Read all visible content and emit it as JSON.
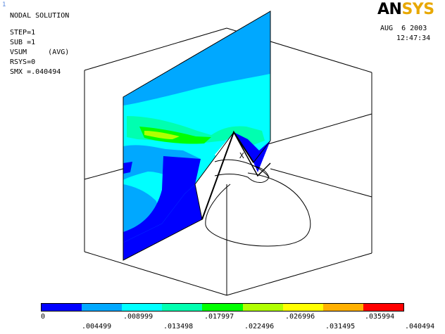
{
  "window_number": "1",
  "logo": {
    "prefix": "AN",
    "suffix": "SYS"
  },
  "info": {
    "title": "NODAL SOLUTION",
    "lines": [
      "STEP=1",
      "SUB =1",
      "VSUM     (AVG)",
      "RSYS=0",
      "SMX =.040494"
    ]
  },
  "datetime": {
    "date": "AUG  6 2003",
    "time": "12:47:34"
  },
  "legend": {
    "colors": [
      "#0000ff",
      "#00a8ff",
      "#00ffff",
      "#00ffb0",
      "#00ff00",
      "#b0ff00",
      "#ffff00",
      "#ffb000",
      "#ff0000"
    ],
    "labels_top_row": [
      "0",
      ".008999",
      ".017997",
      ".026996",
      ".035994"
    ],
    "labels_bottom_row": [
      ".004499",
      ".013498",
      ".022496",
      ".031495",
      ".040494"
    ]
  },
  "model": {
    "node_marker": "X",
    "colors": {
      "blue": "#0000ff",
      "lightblue": "#00a8ff",
      "cyan": "#00ffff",
      "teal": "#00ffb0",
      "green": "#00ff00",
      "lime": "#b0ff00",
      "yellow": "#ffff00"
    }
  }
}
